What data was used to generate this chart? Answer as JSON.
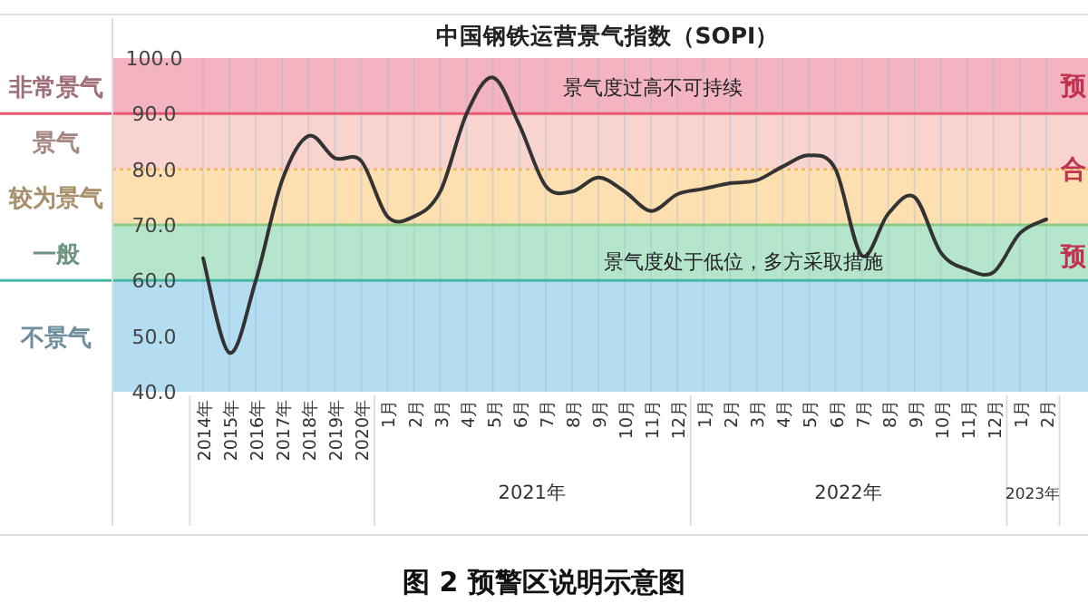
{
  "chart_data": {
    "type": "line",
    "title": "中国钢铁运营景气指数（SOPI）",
    "categories": [
      "2014年",
      "2015年",
      "2016年",
      "2017年",
      "2018年",
      "2019年",
      "2020年",
      "1月",
      "2月",
      "3月",
      "4月",
      "5月",
      "6月",
      "7月",
      "8月",
      "9月",
      "10月",
      "11月",
      "12月",
      "1月",
      "2月",
      "3月",
      "4月",
      "5月",
      "6月",
      "7月",
      "8月",
      "9月",
      "10月",
      "11月",
      "12月",
      "1月",
      "2月"
    ],
    "series": [
      {
        "color": "#333333",
        "values": [
          64,
          47,
          60,
          78,
          86,
          82,
          81.5,
          71.5,
          71.5,
          76,
          90,
          96.5,
          88,
          77,
          76,
          78.5,
          76,
          72.5,
          75.5,
          76.5,
          77.5,
          78,
          80.5,
          82.5,
          80,
          64.5,
          72,
          75,
          65,
          62,
          61.5,
          68.5,
          71
        ]
      }
    ],
    "ylim": [
      40,
      100
    ],
    "yticks": [
      {
        "value": 40,
        "label": "40.0"
      },
      {
        "value": 50,
        "label": "50.0"
      },
      {
        "value": 60,
        "label": "60.0"
      },
      {
        "value": 70,
        "label": "70.0"
      },
      {
        "value": 80,
        "label": "80.0"
      },
      {
        "value": 90,
        "label": "90.0"
      },
      {
        "value": 100,
        "label": "100.0"
      }
    ],
    "bands": [
      {
        "axis": "y",
        "from": 90,
        "to": 100,
        "label": "非常景气",
        "color": "#f4b3c0"
      },
      {
        "axis": "y",
        "from": 80,
        "to": 90,
        "label": "景气",
        "color": "#f9d4cf"
      },
      {
        "axis": "y",
        "from": 70,
        "to": 80,
        "label": "较为景气",
        "color": "#fddfb0"
      },
      {
        "axis": "y",
        "from": 60,
        "to": 70,
        "label": "一般",
        "color": "#b5e6cc"
      },
      {
        "axis": "y",
        "from": 40,
        "to": 60,
        "label": "不景气",
        "color": "#b3ddf1"
      }
    ],
    "ref_lines": [
      {
        "axis": "y",
        "value": 90,
        "color": "#e8566f"
      },
      {
        "axis": "y",
        "value": 80,
        "color": "#f5b868",
        "line_style": "dotted"
      },
      {
        "axis": "y",
        "value": 70,
        "color": "#8cc98a"
      },
      {
        "axis": "y",
        "value": 60,
        "color": "#45b8a8"
      }
    ],
    "annotations": [
      "景气度过高不可持续",
      "景气度处于低位，多方采取措施",
      "预",
      "合",
      "预",
      "2021年",
      "2022年",
      "2023年",
      "图 2  预警区说明示意图"
    ],
    "grid": "x",
    "marker": "none",
    "line_style": "solid"
  }
}
